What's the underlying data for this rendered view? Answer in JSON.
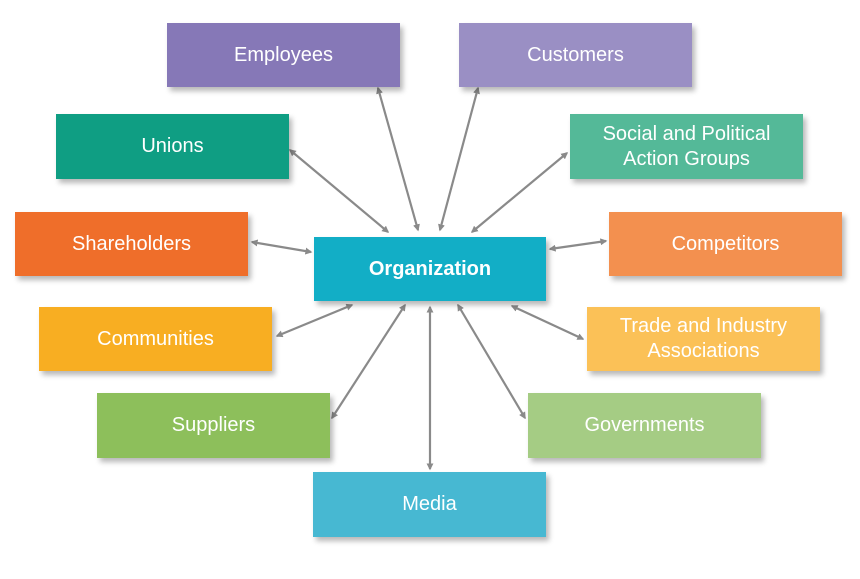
{
  "center": {
    "label": "Organization",
    "color": "#12aec6"
  },
  "stakeholders": [
    {
      "id": "employees",
      "label": "Employees",
      "color": "#8678b7"
    },
    {
      "id": "customers",
      "label": "Customers",
      "color": "#9a8fc4"
    },
    {
      "id": "unions",
      "label": "Unions",
      "color": "#0f9e83"
    },
    {
      "id": "social",
      "label": "Social and Political Action Groups",
      "color": "#54b998"
    },
    {
      "id": "shareholders",
      "label": "Shareholders",
      "color": "#ef6e2a"
    },
    {
      "id": "competitors",
      "label": "Competitors",
      "color": "#f3904f"
    },
    {
      "id": "communities",
      "label": "Communities",
      "color": "#f8ae22"
    },
    {
      "id": "trade",
      "label": "Trade and Industry Associations",
      "color": "#fbc157"
    },
    {
      "id": "suppliers",
      "label": "Suppliers",
      "color": "#8dbf5b"
    },
    {
      "id": "governments",
      "label": "Governments",
      "color": "#a5cc84"
    },
    {
      "id": "media",
      "label": "Media",
      "color": "#47b8d2"
    }
  ],
  "arrow_color": "#8a8a8a"
}
